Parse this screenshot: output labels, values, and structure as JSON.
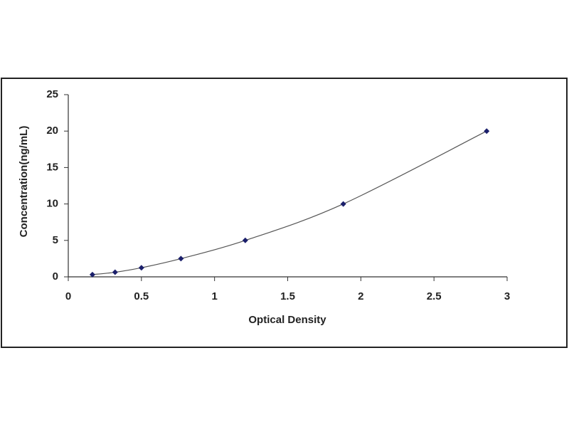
{
  "chart_data": {
    "type": "line",
    "x_label": "Optical Density",
    "y_label": "Concentration(ng/mL)",
    "series": [
      {
        "x": [
          0.165,
          0.32,
          0.5,
          0.77,
          1.21,
          1.88,
          2.86
        ],
        "values": [
          0.31,
          0.63,
          1.25,
          2.5,
          5,
          10,
          20
        ],
        "color": "#1b1f6b",
        "line_color": "#555555"
      }
    ],
    "xlim": [
      0,
      3
    ],
    "xticks": [
      0,
      0.5,
      1,
      1.5,
      2,
      2.5,
      3
    ],
    "ylim": [
      0,
      25
    ],
    "yticks": [
      0,
      5,
      10,
      15,
      20,
      25
    ],
    "grid": false
  }
}
